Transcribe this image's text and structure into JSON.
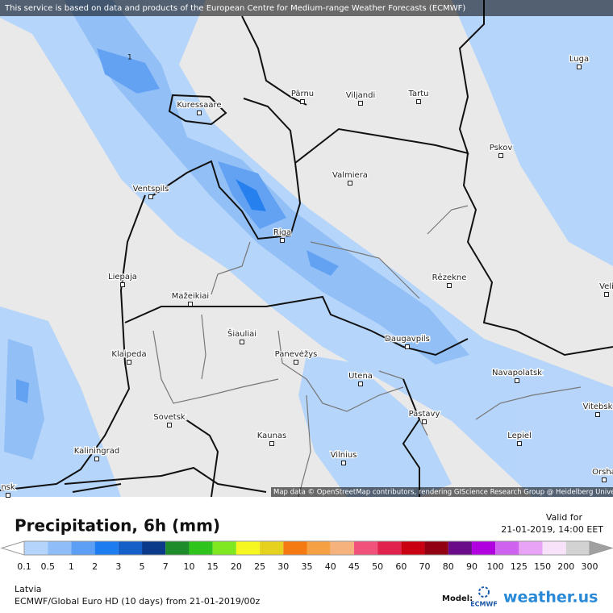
{
  "notice": "This service is based on data and products of the European Centre for Medium-range Weather Forecasts (ECMWF)",
  "attribution": "Map data © OpenStreetMap contributors, rendering GIScience Research Group @ Heidelberg University",
  "contour_label": "1",
  "cities": [
    "Luga",
    "Pärnu",
    "Viljandi",
    "Tartu",
    "Kuressaare",
    "Pskov",
    "Valmiera",
    "Ventspils",
    "Riga",
    "Liepaja",
    "Rēzekne",
    "Mažeikiai",
    "Šiauliai",
    "Klaipeda",
    "Panevėžys",
    "Daugavpils",
    "Veli",
    "Navapolatsk",
    "Utena",
    "Vitebsk",
    "Sovetsk",
    "Pastavy",
    "Kaunas",
    "Lepiel",
    "Kaliningrad",
    "Vilnius",
    "Orsha",
    "nsk"
  ],
  "legend": {
    "title": "Precipitation, 6h (mm)",
    "valid_label": "Valid for",
    "valid_time": "21-01-2019, 14:00 EET",
    "levels": [
      0.1,
      0.5,
      1,
      2,
      3,
      5,
      7,
      10,
      15,
      20,
      25,
      30,
      35,
      40,
      45,
      50,
      60,
      70,
      80,
      90,
      100,
      125,
      150,
      200,
      300
    ],
    "colors": [
      "#b4d4fb",
      "#8ebdf7",
      "#5c9ff4",
      "#1c7cf0",
      "#1560c8",
      "#0c3a8a",
      "#1e8c2a",
      "#2ec41c",
      "#80e820",
      "#f6f620",
      "#e6d21e",
      "#f57a12",
      "#f6a044",
      "#f6b27c",
      "#f0527c",
      "#e0224c",
      "#c80012",
      "#900012",
      "#6a0c8a",
      "#b000e0",
      "#d062f0",
      "#e8a2f6",
      "#f8e2fa",
      "#d2d2d2"
    ]
  },
  "footer": {
    "region": "Latvia",
    "model_run": "ECMWF/Global Euro HD (10 days) from 21-01-2019/00z",
    "model_label": "Model:",
    "model_logo": "ECMWF",
    "brand": "weather.us"
  }
}
